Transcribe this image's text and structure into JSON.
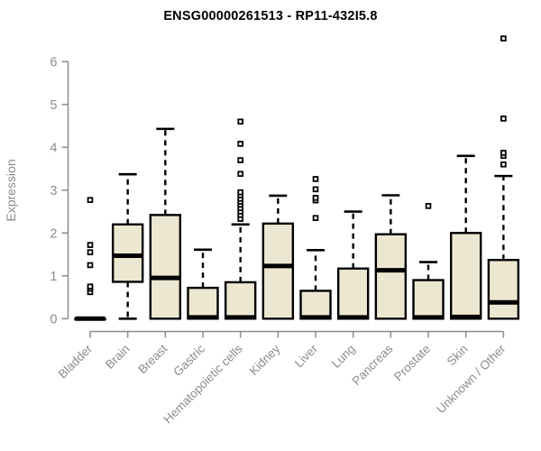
{
  "header": {
    "title": "ENSG00000261513 - RP11-432I5.8"
  },
  "colors": {
    "background": "#ffffff",
    "box_fill": "#ece7d1",
    "box_stroke": "#000000",
    "median_stroke": "#000000",
    "whisker_stroke": "#000000",
    "outlier_stroke": "#000000",
    "axis": "#8c8c8c",
    "tick_label": "#8c8c8c",
    "title_color": "#000000"
  },
  "chart_data": {
    "type": "boxplot",
    "title": "ENSG00000261513 - RP11-432I5.8",
    "xlabel": "",
    "ylabel": "Expression",
    "ylim": [
      0,
      6.6
    ],
    "yticks": [
      0,
      1,
      2,
      3,
      4,
      5,
      6
    ],
    "grid": false,
    "legend": false,
    "categories": [
      "Bladder",
      "Brain",
      "Breast",
      "Gastric",
      "Hematopoietic cells",
      "Kidney",
      "Liver",
      "Lung",
      "Pancreas",
      "Prostate",
      "Skin",
      "Unknown / Other"
    ],
    "boxes": [
      {
        "category": "Bladder",
        "low": 0,
        "q1": 0,
        "median": 0,
        "q3": 0,
        "high": 0,
        "outliers": [
          0.62,
          0.7,
          0.75,
          1.25,
          1.55,
          1.72,
          2.77
        ]
      },
      {
        "category": "Brain",
        "low": 0,
        "q1": 0.86,
        "median": 1.47,
        "q3": 2.2,
        "high": 3.37,
        "outliers": []
      },
      {
        "category": "Breast",
        "low": 0,
        "q1": 0,
        "median": 0.95,
        "q3": 2.42,
        "high": 4.43,
        "outliers": []
      },
      {
        "category": "Gastric",
        "low": 0,
        "q1": 0,
        "median": 0.03,
        "q3": 0.72,
        "high": 1.61,
        "outliers": []
      },
      {
        "category": "Hematopoietic cells",
        "low": 0,
        "q1": 0,
        "median": 0.03,
        "q3": 0.85,
        "high": 2.2,
        "outliers": [
          2.33,
          2.42,
          2.5,
          2.58,
          2.66,
          2.73,
          2.8,
          2.88,
          2.95,
          3.38,
          3.7,
          4.08,
          4.6
        ]
      },
      {
        "category": "Kidney",
        "low": 0,
        "q1": 0,
        "median": 1.23,
        "q3": 2.22,
        "high": 2.87,
        "outliers": []
      },
      {
        "category": "Liver",
        "low": 0,
        "q1": 0,
        "median": 0.03,
        "q3": 0.65,
        "high": 1.6,
        "outliers": [
          2.35,
          2.76,
          2.82,
          3.02,
          3.26
        ]
      },
      {
        "category": "Lung",
        "low": 0,
        "q1": 0,
        "median": 0.03,
        "q3": 1.17,
        "high": 2.5,
        "outliers": []
      },
      {
        "category": "Pancreas",
        "low": 0,
        "q1": 0,
        "median": 1.13,
        "q3": 1.97,
        "high": 2.88,
        "outliers": []
      },
      {
        "category": "Prostate",
        "low": 0,
        "q1": 0,
        "median": 0.03,
        "q3": 0.9,
        "high": 1.32,
        "outliers": [
          2.63
        ]
      },
      {
        "category": "Skin",
        "low": 0,
        "q1": 0,
        "median": 0.04,
        "q3": 2.0,
        "high": 3.8,
        "outliers": []
      },
      {
        "category": "Unknown / Other",
        "low": 0,
        "q1": 0,
        "median": 0.38,
        "q3": 1.37,
        "high": 3.33,
        "outliers": [
          3.6,
          3.8,
          3.87,
          4.67,
          6.54
        ]
      }
    ]
  }
}
